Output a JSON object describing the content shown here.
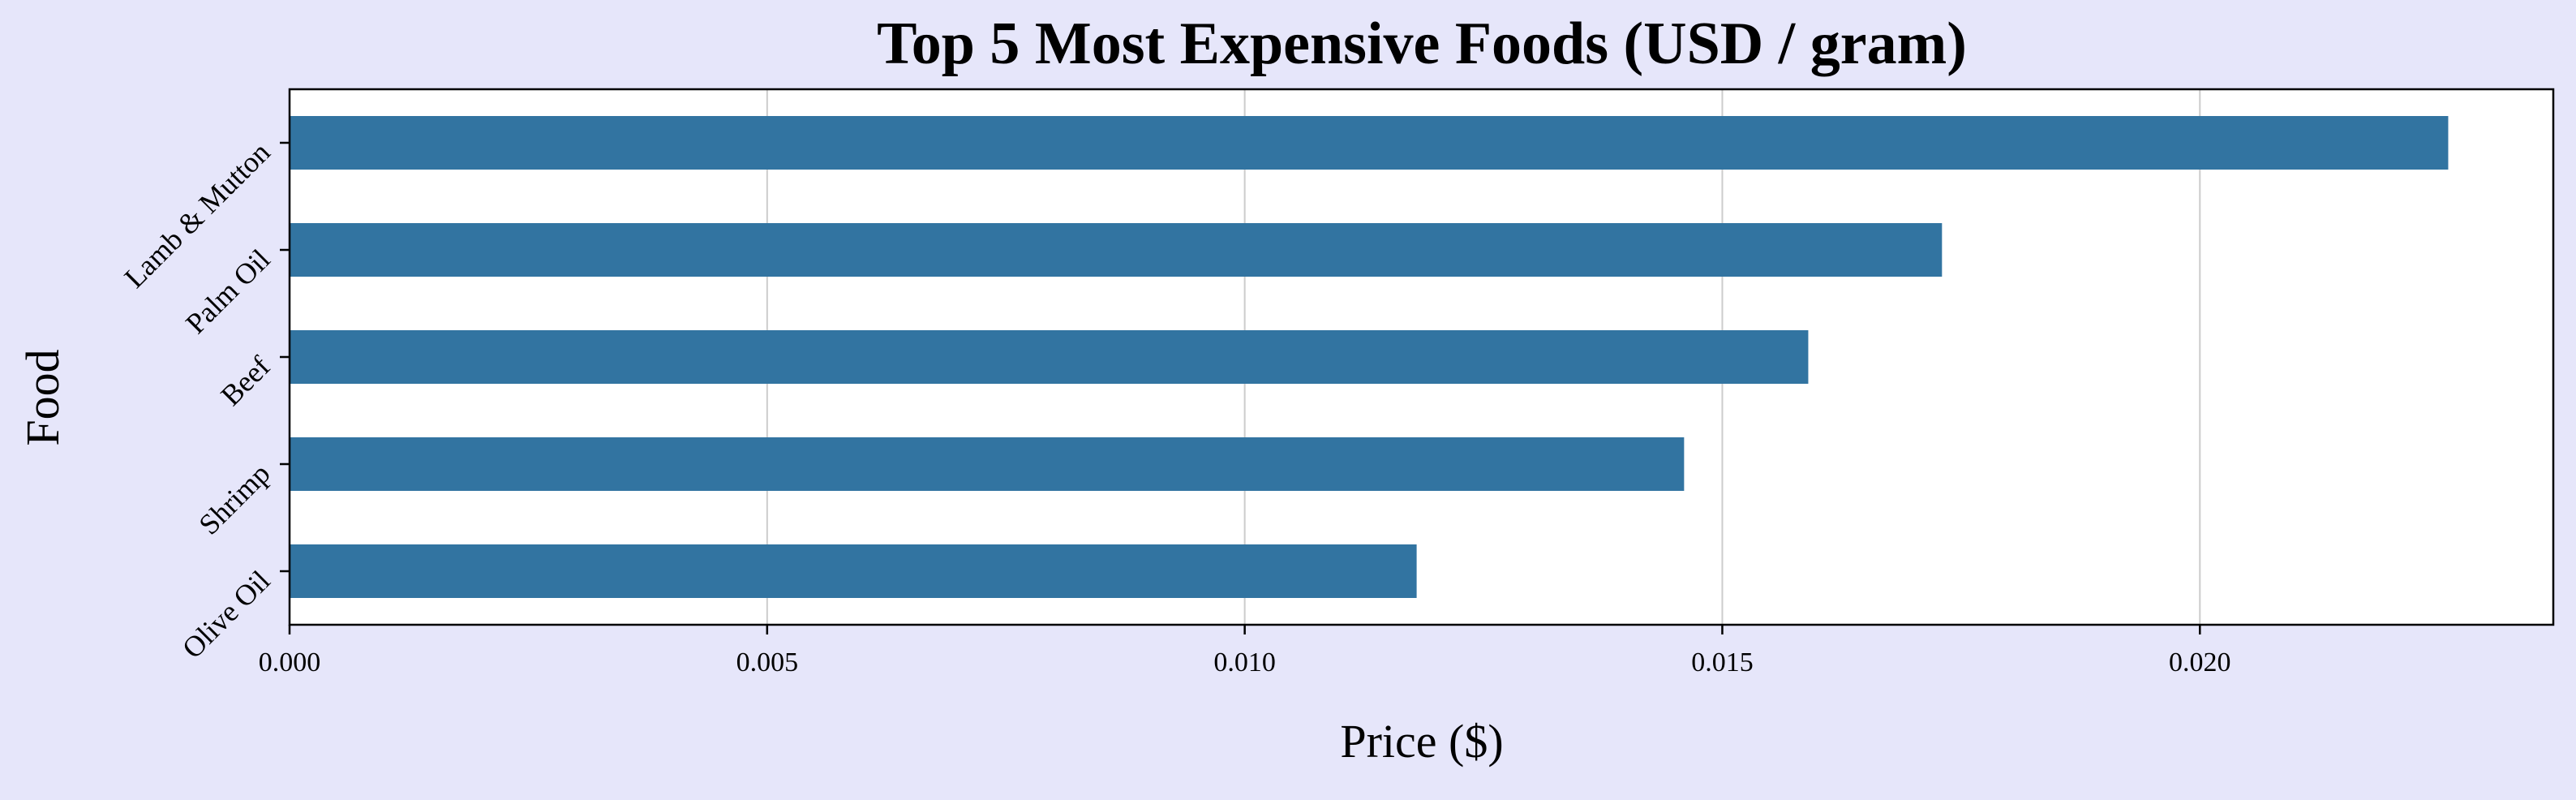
{
  "chart_data": {
    "type": "bar",
    "orientation": "horizontal",
    "title": "Top 5 Most Expensive Foods (USD / gram)",
    "xlabel": "Price ($)",
    "ylabel": "Food",
    "categories": [
      "Lamb & Mutton",
      "Palm Oil",
      "Beef",
      "Shrimp",
      "Olive Oil"
    ],
    "values": [
      0.0226,
      0.0173,
      0.0159,
      0.0146,
      0.0118
    ],
    "xlim": [
      0,
      0.0237
    ],
    "xticks": [
      0.0,
      0.005,
      0.01,
      0.015,
      0.02
    ],
    "xtick_labels": [
      "0.000",
      "0.005",
      "0.010",
      "0.015",
      "0.020"
    ],
    "grid": "x",
    "bar_color": "#3274a1",
    "background_color": "#e6e6fa",
    "plot_background_color": "#ffffff",
    "grid_color": "#cccccc"
  }
}
